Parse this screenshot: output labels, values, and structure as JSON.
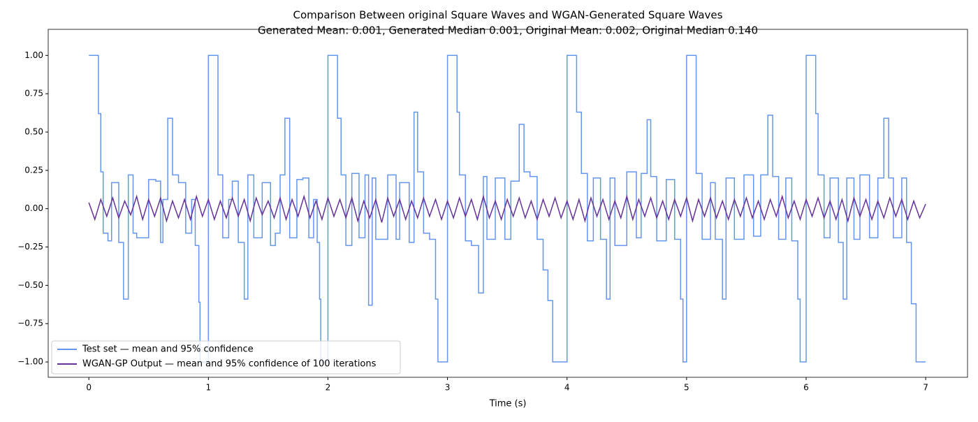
{
  "chart_data": {
    "type": "line",
    "title": "Comparison Between original Square Waves and WGAN-Generated Square Waves",
    "subtitle": "Generated Mean: 0.001, Generated Median 0.001, Original Mean: 0.002, Original Median 0.140",
    "xlabel": "Time (s)",
    "xlim": [
      -0.34,
      7.35
    ],
    "ylim": [
      -1.1,
      1.17
    ],
    "xticks": [
      0,
      1,
      2,
      3,
      4,
      5,
      6,
      7
    ],
    "yticks": [
      {
        "value": -1,
        "label": "−1.00"
      },
      {
        "value": -0.75,
        "label": "−0.75"
      },
      {
        "value": -0.5,
        "label": "−0.50"
      },
      {
        "value": -0.25,
        "label": "−0.25"
      },
      {
        "value": 0,
        "label": "0.00"
      },
      {
        "value": 0.25,
        "label": "0.25"
      },
      {
        "value": 0.5,
        "label": "0.50"
      },
      {
        "value": 0.75,
        "label": "0.75"
      },
      {
        "value": 1,
        "label": "1.00"
      }
    ],
    "legend": "lower left",
    "series": [
      {
        "name": "Test set — mean and 95% confidence",
        "color": "#6495ed",
        "step": "post",
        "x": [
          0,
          0.08,
          0.1,
          0.12,
          0.16,
          0.19,
          0.25,
          0.29,
          0.33,
          0.37,
          0.4,
          0.5,
          0.56,
          0.6,
          0.62,
          0.66,
          0.7,
          0.75,
          0.81,
          0.86,
          0.89,
          0.92,
          0.93,
          1.0,
          1.08,
          1.12,
          1.17,
          1.2,
          1.25,
          1.3,
          1.33,
          1.38,
          1.45,
          1.52,
          1.56,
          1.6,
          1.64,
          1.68,
          1.74,
          1.79,
          1.84,
          1.88,
          1.91,
          1.93,
          1.94,
          2.0,
          2.08,
          2.11,
          2.15,
          2.2,
          2.26,
          2.31,
          2.34,
          2.37,
          2.4,
          2.5,
          2.57,
          2.6,
          2.68,
          2.72,
          2.75,
          2.8,
          2.85,
          2.9,
          2.92,
          3.0,
          3.08,
          3.1,
          3.15,
          3.2,
          3.26,
          3.3,
          3.33,
          3.4,
          3.48,
          3.53,
          3.6,
          3.64,
          3.69,
          3.75,
          3.8,
          3.84,
          3.88,
          4.0,
          4.08,
          4.12,
          4.17,
          4.22,
          4.28,
          4.33,
          4.36,
          4.4,
          4.5,
          4.58,
          4.62,
          4.67,
          4.7,
          4.75,
          4.83,
          4.9,
          4.95,
          4.97,
          5.0,
          5.08,
          5.13,
          5.2,
          5.24,
          5.3,
          5.33,
          5.4,
          5.48,
          5.56,
          5.62,
          5.68,
          5.72,
          5.77,
          5.83,
          5.88,
          5.93,
          5.95,
          6.0,
          6.08,
          6.1,
          6.15,
          6.2,
          6.27,
          6.31,
          6.34,
          6.4,
          6.45,
          6.53,
          6.6,
          6.65,
          6.69,
          6.73,
          6.8,
          6.84,
          6.88,
          6.92,
          7.0
        ],
        "values": [
          1,
          0.62,
          0.24,
          -0.16,
          -0.21,
          0.17,
          -0.22,
          -0.59,
          0.22,
          -0.16,
          -0.19,
          0.19,
          0.18,
          -0.22,
          0.06,
          0.59,
          0.22,
          0.17,
          -0.16,
          0.06,
          -0.24,
          -0.61,
          -1,
          1,
          0.22,
          -0.19,
          0.06,
          0.18,
          -0.22,
          -0.59,
          0.22,
          -0.19,
          0.17,
          -0.24,
          -0.16,
          0.22,
          0.59,
          -0.19,
          0.19,
          0.2,
          -0.19,
          0.06,
          -0.22,
          -0.59,
          -1,
          1,
          0.59,
          0.22,
          -0.24,
          0.23,
          -0.19,
          0.22,
          -0.63,
          0.2,
          -0.2,
          0.22,
          -0.2,
          0.17,
          -0.22,
          0.63,
          0.24,
          -0.16,
          -0.2,
          -0.59,
          -1,
          1,
          0.63,
          0.22,
          -0.21,
          -0.24,
          -0.55,
          0.21,
          -0.2,
          0.2,
          -0.2,
          0.18,
          0.55,
          0.24,
          0.21,
          -0.2,
          -0.4,
          -0.6,
          -1,
          1,
          0.63,
          0.23,
          -0.21,
          0.2,
          -0.2,
          -0.59,
          0.2,
          -0.24,
          0.24,
          -0.19,
          0.23,
          0.58,
          0.21,
          -0.21,
          0.19,
          -0.2,
          -0.59,
          -1,
          1,
          0.23,
          -0.2,
          0.17,
          -0.2,
          -0.59,
          0.2,
          -0.2,
          0.22,
          -0.18,
          0.22,
          0.61,
          0.21,
          -0.2,
          0.2,
          -0.21,
          -0.59,
          -1,
          1,
          0.62,
          0.22,
          -0.19,
          0.2,
          -0.22,
          -0.59,
          0.2,
          -0.2,
          0.22,
          -0.19,
          0.2,
          0.59,
          0.2,
          -0.19,
          0.2,
          -0.22,
          -0.62,
          -1,
          -1
        ]
      },
      {
        "name": "WGAN-GP Output — mean and 95% confidence of 100 iterations",
        "color": "#663399",
        "x": [
          0,
          0.05,
          0.1,
          0.15,
          0.2,
          0.25,
          0.3,
          0.35,
          0.4,
          0.45,
          0.5,
          0.55,
          0.6,
          0.65,
          0.7,
          0.75,
          0.8,
          0.85,
          0.9,
          0.95,
          1,
          1.05,
          1.1,
          1.15,
          1.2,
          1.25,
          1.3,
          1.35,
          1.4,
          1.45,
          1.5,
          1.55,
          1.6,
          1.65,
          1.7,
          1.75,
          1.8,
          1.85,
          1.9,
          1.95,
          2,
          2.05,
          2.1,
          2.15,
          2.2,
          2.25,
          2.3,
          2.35,
          2.4,
          2.45,
          2.5,
          2.55,
          2.6,
          2.65,
          2.7,
          2.75,
          2.8,
          2.85,
          2.9,
          2.95,
          3,
          3.05,
          3.1,
          3.15,
          3.2,
          3.25,
          3.3,
          3.35,
          3.4,
          3.45,
          3.5,
          3.55,
          3.6,
          3.65,
          3.7,
          3.75,
          3.8,
          3.85,
          3.9,
          3.95,
          4,
          4.05,
          4.1,
          4.15,
          4.2,
          4.25,
          4.3,
          4.35,
          4.4,
          4.45,
          4.5,
          4.55,
          4.6,
          4.65,
          4.7,
          4.75,
          4.8,
          4.85,
          4.9,
          4.95,
          5,
          5.05,
          5.1,
          5.15,
          5.2,
          5.25,
          5.3,
          5.35,
          5.4,
          5.45,
          5.5,
          5.55,
          5.6,
          5.65,
          5.7,
          5.75,
          5.8,
          5.85,
          5.9,
          5.95,
          6,
          6.05,
          6.1,
          6.15,
          6.2,
          6.25,
          6.3,
          6.35,
          6.4,
          6.45,
          6.5,
          6.55,
          6.6,
          6.65,
          6.7,
          6.75,
          6.8,
          6.85,
          6.9,
          6.95,
          7
        ],
        "values": [
          0.04,
          -0.07,
          0.06,
          -0.05,
          0.07,
          -0.06,
          0.05,
          -0.04,
          0.08,
          -0.07,
          0.06,
          -0.05,
          0.07,
          -0.08,
          0.05,
          -0.06,
          0.06,
          -0.07,
          0.08,
          -0.05,
          0.06,
          -0.07,
          0.05,
          -0.06,
          0.07,
          -0.05,
          0.06,
          -0.08,
          0.07,
          -0.04,
          0.05,
          -0.06,
          0.07,
          -0.07,
          0.06,
          -0.05,
          0.08,
          -0.06,
          0.05,
          -0.07,
          0.07,
          -0.05,
          0.06,
          -0.06,
          0.07,
          -0.08,
          0.05,
          -0.06,
          0.06,
          -0.09,
          0.07,
          -0.05,
          0.06,
          -0.07,
          0.05,
          -0.06,
          0.07,
          -0.05,
          0.06,
          -0.07,
          0.05,
          -0.06,
          0.07,
          -0.05,
          0.06,
          -0.07,
          0.08,
          -0.06,
          0.05,
          -0.07,
          0.06,
          -0.05,
          0.07,
          -0.06,
          0.05,
          -0.07,
          0.06,
          -0.05,
          0.07,
          -0.06,
          0.05,
          -0.07,
          0.06,
          -0.08,
          0.07,
          -0.05,
          0.06,
          -0.07,
          0.05,
          -0.06,
          0.08,
          -0.07,
          0.06,
          -0.05,
          0.07,
          -0.06,
          0.05,
          -0.07,
          0.06,
          -0.05,
          0.07,
          -0.08,
          0.06,
          -0.05,
          0.07,
          -0.06,
          0.05,
          -0.07,
          0.06,
          -0.05,
          0.07,
          -0.06,
          0.05,
          -0.07,
          0.06,
          -0.05,
          0.08,
          -0.06,
          0.05,
          -0.07,
          0.06,
          -0.05,
          0.07,
          -0.06,
          0.05,
          -0.07,
          0.06,
          -0.08,
          0.07,
          -0.05,
          0.06,
          -0.07,
          0.05,
          -0.06,
          0.07,
          -0.05,
          0.06,
          -0.07,
          0.05,
          -0.06,
          0.03
        ]
      }
    ]
  }
}
